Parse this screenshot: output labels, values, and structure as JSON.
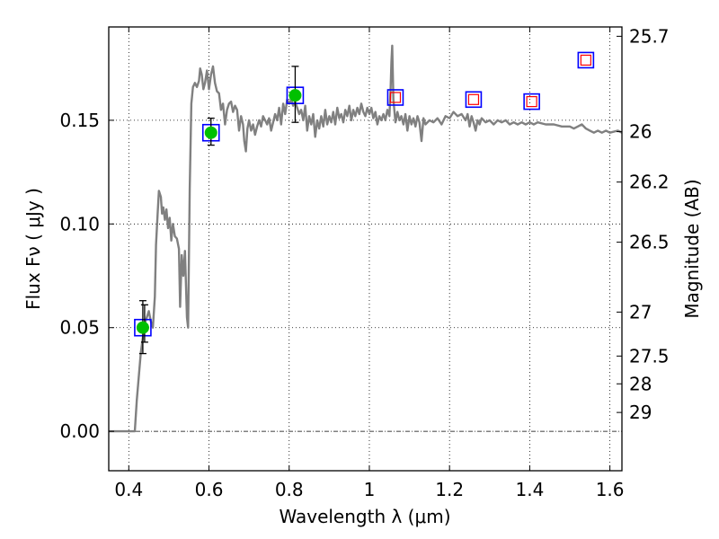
{
  "chart_data": {
    "type": "line",
    "xlabel": "Wavelength  λ (μm)",
    "ylabel": "Flux  Fν  ( μJy )",
    "y2label": "Magnitude (AB)",
    "xlim": [
      0.35,
      1.63
    ],
    "ylim": [
      -0.019,
      0.195
    ],
    "grid": true,
    "xticks": [
      0.4,
      0.6,
      0.8,
      1.0,
      1.2,
      1.4,
      1.6
    ],
    "xtick_labels": [
      "0.4",
      "0.6",
      "0.8",
      "1",
      "1.2",
      "1.4",
      "1.6"
    ],
    "yticks": [
      0.0,
      0.05,
      0.1,
      0.15
    ],
    "ytick_labels": [
      "0.00",
      "0.05",
      "0.10",
      "0.15"
    ],
    "y2ticks": [
      {
        "mag": "25.7",
        "flux": 0.1905
      },
      {
        "mag": "26",
        "flux": 0.1445
      },
      {
        "mag": "26.2",
        "flux": 0.1202
      },
      {
        "mag": "26.5",
        "flux": 0.0912
      },
      {
        "mag": "27",
        "flux": 0.0575
      },
      {
        "mag": "27.5",
        "flux": 0.0363
      },
      {
        "mag": "28",
        "flux": 0.0229
      },
      {
        "mag": "29",
        "flux": 0.0091
      }
    ],
    "colors": {
      "model": "#808080",
      "observed_fill": "#00c000",
      "observed_box": "#0000ff",
      "synthetic_outer": "#0000ff",
      "synthetic_inner": "#ff0000",
      "errorbar": "#000000",
      "grid": "#000000"
    },
    "series": [
      {
        "kind": "model-spectrum",
        "points": [
          [
            0.35,
            0.0
          ],
          [
            0.4,
            0.0
          ],
          [
            0.41,
            0.0
          ],
          [
            0.415,
            0.0
          ],
          [
            0.42,
            0.015
          ],
          [
            0.43,
            0.038
          ],
          [
            0.435,
            0.045
          ],
          [
            0.44,
            0.052
          ],
          [
            0.445,
            0.055
          ],
          [
            0.45,
            0.058
          ],
          [
            0.455,
            0.053
          ],
          [
            0.46,
            0.05
          ],
          [
            0.465,
            0.065
          ],
          [
            0.468,
            0.09
          ],
          [
            0.472,
            0.105
          ],
          [
            0.475,
            0.116
          ],
          [
            0.48,
            0.113
          ],
          [
            0.483,
            0.105
          ],
          [
            0.486,
            0.108
          ],
          [
            0.49,
            0.102
          ],
          [
            0.494,
            0.107
          ],
          [
            0.498,
            0.098
          ],
          [
            0.502,
            0.103
          ],
          [
            0.506,
            0.092
          ],
          [
            0.51,
            0.1
          ],
          [
            0.515,
            0.094
          ],
          [
            0.52,
            0.093
          ],
          [
            0.525,
            0.088
          ],
          [
            0.528,
            0.06
          ],
          [
            0.532,
            0.085
          ],
          [
            0.536,
            0.075
          ],
          [
            0.54,
            0.087
          ],
          [
            0.545,
            0.055
          ],
          [
            0.548,
            0.05
          ],
          [
            0.552,
            0.117
          ],
          [
            0.556,
            0.158
          ],
          [
            0.56,
            0.166
          ],
          [
            0.565,
            0.168
          ],
          [
            0.57,
            0.166
          ],
          [
            0.575,
            0.169
          ],
          [
            0.578,
            0.175
          ],
          [
            0.582,
            0.172
          ],
          [
            0.586,
            0.165
          ],
          [
            0.59,
            0.168
          ],
          [
            0.595,
            0.174
          ],
          [
            0.6,
            0.165
          ],
          [
            0.605,
            0.172
          ],
          [
            0.61,
            0.176
          ],
          [
            0.615,
            0.168
          ],
          [
            0.62,
            0.164
          ],
          [
            0.625,
            0.163
          ],
          [
            0.63,
            0.155
          ],
          [
            0.635,
            0.158
          ],
          [
            0.64,
            0.148
          ],
          [
            0.645,
            0.155
          ],
          [
            0.65,
            0.158
          ],
          [
            0.655,
            0.159
          ],
          [
            0.66,
            0.154
          ],
          [
            0.665,
            0.157
          ],
          [
            0.67,
            0.155
          ],
          [
            0.675,
            0.145
          ],
          [
            0.68,
            0.152
          ],
          [
            0.685,
            0.148
          ],
          [
            0.688,
            0.14
          ],
          [
            0.692,
            0.135
          ],
          [
            0.696,
            0.146
          ],
          [
            0.7,
            0.15
          ],
          [
            0.705,
            0.145
          ],
          [
            0.71,
            0.148
          ],
          [
            0.715,
            0.143
          ],
          [
            0.72,
            0.147
          ],
          [
            0.725,
            0.15
          ],
          [
            0.73,
            0.147
          ],
          [
            0.735,
            0.152
          ],
          [
            0.74,
            0.15
          ],
          [
            0.745,
            0.148
          ],
          [
            0.75,
            0.151
          ],
          [
            0.755,
            0.145
          ],
          [
            0.76,
            0.149
          ],
          [
            0.765,
            0.153
          ],
          [
            0.77,
            0.15
          ],
          [
            0.775,
            0.156
          ],
          [
            0.78,
            0.148
          ],
          [
            0.785,
            0.158
          ],
          [
            0.79,
            0.153
          ],
          [
            0.795,
            0.16
          ],
          [
            0.8,
            0.158
          ],
          [
            0.805,
            0.16
          ],
          [
            0.81,
            0.157
          ],
          [
            0.815,
            0.159
          ],
          [
            0.82,
            0.156
          ],
          [
            0.825,
            0.153
          ],
          [
            0.83,
            0.155
          ],
          [
            0.835,
            0.15
          ],
          [
            0.84,
            0.157
          ],
          [
            0.845,
            0.145
          ],
          [
            0.85,
            0.152
          ],
          [
            0.855,
            0.148
          ],
          [
            0.86,
            0.153
          ],
          [
            0.865,
            0.142
          ],
          [
            0.87,
            0.15
          ],
          [
            0.875,
            0.146
          ],
          [
            0.88,
            0.152
          ],
          [
            0.885,
            0.147
          ],
          [
            0.89,
            0.155
          ],
          [
            0.895,
            0.148
          ],
          [
            0.9,
            0.152
          ],
          [
            0.905,
            0.149
          ],
          [
            0.91,
            0.154
          ],
          [
            0.915,
            0.148
          ],
          [
            0.92,
            0.156
          ],
          [
            0.925,
            0.151
          ],
          [
            0.93,
            0.153
          ],
          [
            0.935,
            0.149
          ],
          [
            0.94,
            0.155
          ],
          [
            0.945,
            0.152
          ],
          [
            0.95,
            0.157
          ],
          [
            0.955,
            0.15
          ],
          [
            0.96,
            0.155
          ],
          [
            0.965,
            0.152
          ],
          [
            0.97,
            0.156
          ],
          [
            0.975,
            0.153
          ],
          [
            0.98,
            0.158
          ],
          [
            0.985,
            0.154
          ],
          [
            0.99,
            0.152
          ],
          [
            0.995,
            0.156
          ],
          [
            1.0,
            0.153
          ],
          [
            1.005,
            0.156
          ],
          [
            1.01,
            0.151
          ],
          [
            1.015,
            0.154
          ],
          [
            1.02,
            0.148
          ],
          [
            1.025,
            0.152
          ],
          [
            1.03,
            0.15
          ],
          [
            1.035,
            0.153
          ],
          [
            1.04,
            0.15
          ],
          [
            1.045,
            0.155
          ],
          [
            1.05,
            0.152
          ],
          [
            1.053,
            0.165
          ],
          [
            1.055,
            0.178
          ],
          [
            1.057,
            0.186
          ],
          [
            1.06,
            0.16
          ],
          [
            1.065,
            0.149
          ],
          [
            1.07,
            0.154
          ],
          [
            1.075,
            0.15
          ],
          [
            1.08,
            0.152
          ],
          [
            1.085,
            0.148
          ],
          [
            1.09,
            0.153
          ],
          [
            1.095,
            0.145
          ],
          [
            1.1,
            0.152
          ],
          [
            1.105,
            0.148
          ],
          [
            1.11,
            0.151
          ],
          [
            1.115,
            0.147
          ],
          [
            1.12,
            0.152
          ],
          [
            1.125,
            0.149
          ],
          [
            1.13,
            0.14
          ],
          [
            1.135,
            0.151
          ],
          [
            1.14,
            0.148
          ],
          [
            1.15,
            0.15
          ],
          [
            1.16,
            0.149
          ],
          [
            1.17,
            0.151
          ],
          [
            1.18,
            0.148
          ],
          [
            1.19,
            0.152
          ],
          [
            1.2,
            0.151
          ],
          [
            1.21,
            0.154
          ],
          [
            1.22,
            0.152
          ],
          [
            1.23,
            0.153
          ],
          [
            1.24,
            0.15
          ],
          [
            1.245,
            0.153
          ],
          [
            1.25,
            0.147
          ],
          [
            1.255,
            0.152
          ],
          [
            1.26,
            0.149
          ],
          [
            1.265,
            0.145
          ],
          [
            1.27,
            0.15
          ],
          [
            1.275,
            0.148
          ],
          [
            1.28,
            0.151
          ],
          [
            1.29,
            0.149
          ],
          [
            1.3,
            0.15
          ],
          [
            1.31,
            0.148
          ],
          [
            1.32,
            0.15
          ],
          [
            1.33,
            0.149
          ],
          [
            1.34,
            0.15
          ],
          [
            1.35,
            0.148
          ],
          [
            1.36,
            0.149
          ],
          [
            1.37,
            0.148
          ],
          [
            1.38,
            0.149
          ],
          [
            1.39,
            0.148
          ],
          [
            1.4,
            0.149
          ],
          [
            1.41,
            0.148
          ],
          [
            1.42,
            0.149
          ],
          [
            1.44,
            0.148
          ],
          [
            1.46,
            0.148
          ],
          [
            1.48,
            0.147
          ],
          [
            1.5,
            0.147
          ],
          [
            1.51,
            0.146
          ],
          [
            1.52,
            0.147
          ],
          [
            1.53,
            0.148
          ],
          [
            1.54,
            0.146
          ],
          [
            1.55,
            0.145
          ],
          [
            1.56,
            0.144
          ],
          [
            1.57,
            0.145
          ],
          [
            1.58,
            0.144
          ],
          [
            1.59,
            0.145
          ],
          [
            1.6,
            0.144
          ],
          [
            1.62,
            0.145
          ],
          [
            1.63,
            0.144
          ]
        ]
      },
      {
        "kind": "observed-photometry",
        "points": [
          {
            "x": 0.435,
            "y": 0.05,
            "err_low": 0.0375,
            "err_high": 0.063,
            "err2_low": 0.043,
            "err2_high": 0.061
          },
          {
            "x": 0.605,
            "y": 0.144,
            "err_low": 0.138,
            "err_high": 0.151
          },
          {
            "x": 0.815,
            "y": 0.162,
            "err_low": 0.149,
            "err_high": 0.176
          }
        ]
      },
      {
        "kind": "synthetic-photometry",
        "points": [
          {
            "x": 1.065,
            "y": 0.161
          },
          {
            "x": 1.26,
            "y": 0.16
          },
          {
            "x": 1.405,
            "y": 0.159
          },
          {
            "x": 1.54,
            "y": 0.179
          }
        ]
      }
    ]
  }
}
